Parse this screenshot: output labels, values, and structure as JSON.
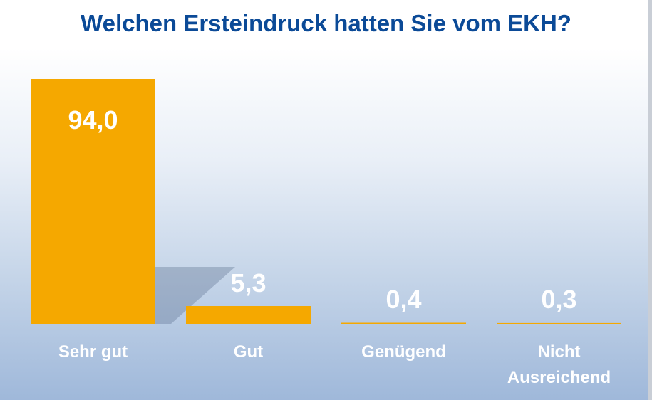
{
  "chart_data": {
    "type": "bar",
    "title": "Welchen Ersteindruck hatten Sie vom EKH?",
    "categories": [
      "Sehr gut",
      "Gut",
      "Genügend",
      "Nicht Ausreichend"
    ],
    "category_lines": [
      [
        "Sehr gut"
      ],
      [
        "Gut"
      ],
      [
        "Genügend"
      ],
      [
        "Nicht",
        "Ausreichend"
      ]
    ],
    "values": [
      94.0,
      5.3,
      0.4,
      0.3
    ],
    "value_labels": [
      "94,0",
      "5,3",
      "0,4",
      "0,3"
    ],
    "xlabel": "",
    "ylabel": "",
    "ylim": [
      0,
      94
    ],
    "grid": false,
    "colors": {
      "bar": "#f5a800",
      "title": "#0b4a97",
      "label": "#ffffff"
    }
  }
}
